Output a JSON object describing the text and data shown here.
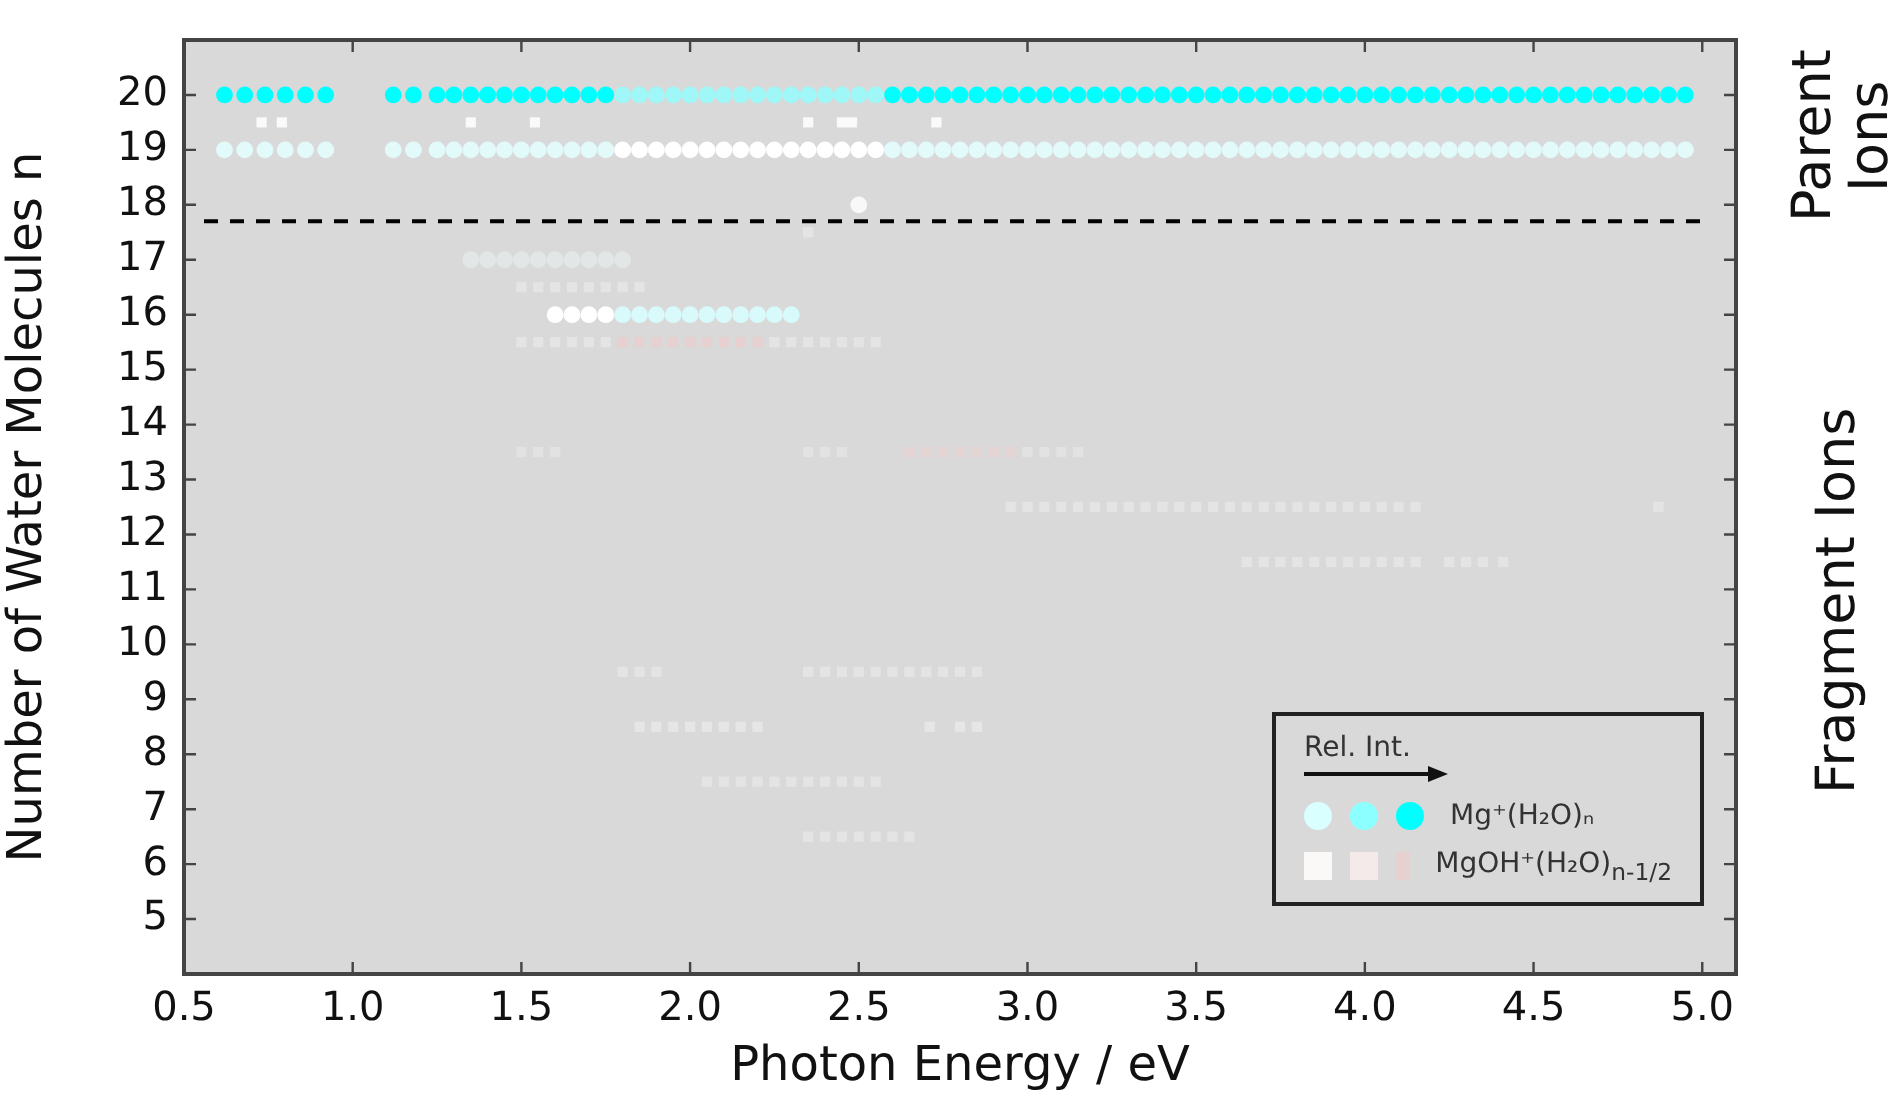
{
  "chart_data": {
    "type": "scatter",
    "xlabel": "Photon Energy / eV",
    "ylabel": "Number of Water Molecules n",
    "legend_title": "Rel. Int.",
    "legend": "bottom right",
    "xlim": [
      0.5,
      5.1
    ],
    "ylim": [
      4,
      21
    ],
    "xticks": [
      0.5,
      {
        "value": 1,
        "label": "1.0"
      },
      1.5,
      {
        "value": 2,
        "label": "2.0"
      },
      2.5,
      {
        "value": 3,
        "label": "3.0"
      },
      3.5,
      {
        "value": 4,
        "label": "4.0"
      },
      4.5,
      {
        "value": 5,
        "label": "5.0"
      }
    ],
    "yticks": [
      5,
      6,
      7,
      8,
      9,
      10,
      11,
      12,
      13,
      14,
      15,
      16,
      17,
      18,
      19,
      20
    ],
    "ref_lines": [
      {
        "axis": "y",
        "value": 17.7,
        "color": "#000000",
        "line_style": "dashed"
      }
    ],
    "annotations": [
      "Parent Ions",
      "Fragment Ions"
    ],
    "series": [
      {
        "name": "Mg⁺(H₂O)ₙ",
        "marker": "circle",
        "color": "#00ffff",
        "x": [
          0.62,
          0.68,
          0.74,
          0.8,
          0.86,
          0.92,
          1.12,
          1.18,
          1.25,
          1.3,
          1.35,
          1.4,
          1.45,
          1.5,
          1.55,
          1.6,
          1.65,
          1.7,
          1.75
        ],
        "values": [
          20,
          20,
          20,
          20,
          20,
          20,
          20,
          20,
          20,
          20,
          20,
          20,
          20,
          20,
          20,
          20,
          20,
          20,
          20
        ]
      },
      {
        "marker": "circle",
        "color": "#9ff7f7",
        "x": [
          1.8,
          1.85,
          1.9,
          1.95,
          2,
          2.05,
          2.1,
          2.15,
          2.2,
          2.25,
          2.3,
          2.35,
          2.4,
          2.45,
          2.5,
          2.55
        ],
        "values": [
          20,
          20,
          20,
          20,
          20,
          20,
          20,
          20,
          20,
          20,
          20,
          20,
          20,
          20,
          20,
          20
        ]
      },
      {
        "marker": "circle",
        "color": "#00ffff",
        "x": [
          2.6,
          2.65,
          2.7,
          2.75,
          2.8,
          2.85,
          2.9,
          2.95,
          3,
          3.05,
          3.1,
          3.15,
          3.2,
          3.25,
          3.3,
          3.35,
          3.4,
          3.45,
          3.5,
          3.55,
          3.6,
          3.65,
          3.7,
          3.75,
          3.8,
          3.85,
          3.9,
          3.95,
          4,
          4.05,
          4.1,
          4.15,
          4.2,
          4.25,
          4.3,
          4.35,
          4.4,
          4.45,
          4.5,
          4.55,
          4.6,
          4.65,
          4.7,
          4.75,
          4.8,
          4.85,
          4.9,
          4.95
        ],
        "values": [
          20,
          20,
          20,
          20,
          20,
          20,
          20,
          20,
          20,
          20,
          20,
          20,
          20,
          20,
          20,
          20,
          20,
          20,
          20,
          20,
          20,
          20,
          20,
          20,
          20,
          20,
          20,
          20,
          20,
          20,
          20,
          20,
          20,
          20,
          20,
          20,
          20,
          20,
          20,
          20,
          20,
          20,
          20,
          20,
          20,
          20,
          20,
          20
        ]
      },
      {
        "marker": "circle",
        "color": "#e3fafa",
        "x": [
          0.62,
          0.68,
          0.74,
          0.8,
          0.86,
          0.92,
          1.12,
          1.18,
          1.25,
          1.3,
          1.35,
          1.4,
          1.45,
          1.5,
          1.55,
          1.6,
          1.65,
          1.7,
          1.75
        ],
        "values": [
          19,
          19,
          19,
          19,
          19,
          19,
          19,
          19,
          19,
          19,
          19,
          19,
          19,
          19,
          19,
          19,
          19,
          19,
          19
        ]
      },
      {
        "marker": "circle",
        "color": "#ffffff",
        "x": [
          1.8,
          1.85,
          1.9,
          1.95,
          2,
          2.05,
          2.1,
          2.15,
          2.2,
          2.25,
          2.3,
          2.35,
          2.4,
          2.45,
          2.5,
          2.55
        ],
        "values": [
          19,
          19,
          19,
          19,
          19,
          19,
          19,
          19,
          19,
          19,
          19,
          19,
          19,
          19,
          19,
          19
        ]
      },
      {
        "marker": "circle",
        "color": "#e3fafa",
        "x": [
          2.6,
          2.65,
          2.7,
          2.75,
          2.8,
          2.85,
          2.9,
          2.95,
          3,
          3.05,
          3.1,
          3.15,
          3.2,
          3.25,
          3.3,
          3.35,
          3.4,
          3.45,
          3.5,
          3.55,
          3.6,
          3.65,
          3.7,
          3.75,
          3.8,
          3.85,
          3.9,
          3.95,
          4,
          4.05,
          4.1,
          4.15,
          4.2,
          4.25,
          4.3,
          4.35,
          4.4,
          4.45,
          4.5,
          4.55,
          4.6,
          4.65,
          4.7,
          4.75,
          4.8,
          4.85,
          4.9,
          4.95
        ],
        "values": [
          19,
          19,
          19,
          19,
          19,
          19,
          19,
          19,
          19,
          19,
          19,
          19,
          19,
          19,
          19,
          19,
          19,
          19,
          19,
          19,
          19,
          19,
          19,
          19,
          19,
          19,
          19,
          19,
          19,
          19,
          19,
          19,
          19,
          19,
          19,
          19,
          19,
          19,
          19,
          19,
          19,
          19,
          19,
          19,
          19,
          19,
          19,
          19
        ]
      },
      {
        "marker": "circle",
        "color": "#f8f8f8",
        "x": [
          2.5
        ],
        "values": [
          18
        ]
      },
      {
        "marker": "circle",
        "color": "#e2e6e6",
        "x": [
          1.35,
          1.4,
          1.45,
          1.5,
          1.55,
          1.6,
          1.65,
          1.7,
          1.75,
          1.8
        ],
        "values": [
          17,
          17,
          17,
          17,
          17,
          17,
          17,
          17,
          17,
          17
        ]
      },
      {
        "marker": "circle",
        "color": "#ffffff",
        "x": [
          1.6,
          1.65,
          1.7,
          1.75
        ],
        "values": [
          16,
          16,
          16,
          16
        ]
      },
      {
        "marker": "circle",
        "color": "#d8fafa",
        "x": [
          1.8,
          1.85,
          1.9,
          1.95,
          2,
          2.05,
          2.1,
          2.15,
          2.2,
          2.25,
          2.3
        ],
        "values": [
          16,
          16,
          16,
          16,
          16,
          16,
          16,
          16,
          16,
          16,
          16
        ]
      },
      {
        "marker": "square",
        "color": "#fafafa",
        "x": [
          0.73,
          0.79,
          1.35,
          1.54,
          2.35,
          2.45,
          2.48,
          2.73
        ],
        "values": [
          19.5,
          19.5,
          19.5,
          19.5,
          19.5,
          19.5,
          19.5,
          19.5
        ]
      },
      {
        "marker": "square",
        "color": "#e4e4e4",
        "x": [
          2.35
        ],
        "values": [
          17.5
        ]
      },
      {
        "marker": "square",
        "color": "#e4e4e4",
        "x": [
          1.5,
          1.55,
          1.6,
          1.65,
          1.7,
          1.75,
          1.8,
          1.85
        ],
        "values": [
          16.5,
          16.5,
          16.5,
          16.5,
          16.5,
          16.5,
          16.5,
          16.5
        ]
      },
      {
        "marker": "square",
        "color": "#e4e4e4",
        "x": [
          1.5,
          1.55,
          1.6,
          1.65,
          1.7,
          1.75
        ],
        "values": [
          15.5,
          15.5,
          15.5,
          15.5,
          15.5,
          15.5
        ]
      },
      {
        "name": "MgOH⁺(H₂O)$_{n-1/2}$",
        "marker": "square",
        "color": "#e6d0d0",
        "x": [
          1.8,
          1.85,
          1.9,
          1.95,
          2,
          2.05,
          2.1,
          2.15,
          2.2
        ],
        "values": [
          15.5,
          15.5,
          15.5,
          15.5,
          15.5,
          15.5,
          15.5,
          15.5,
          15.5
        ]
      },
      {
        "marker": "square",
        "color": "#e4e4e4",
        "x": [
          2.25,
          2.3,
          2.35,
          2.4,
          2.45,
          2.5,
          2.55
        ],
        "values": [
          15.5,
          15.5,
          15.5,
          15.5,
          15.5,
          15.5,
          15.5
        ]
      },
      {
        "marker": "square",
        "color": "#e2e2e2",
        "x": [
          1.5,
          1.55,
          1.6,
          2.35,
          2.4,
          2.45,
          3,
          3.05,
          3.1,
          3.15
        ],
        "values": [
          13.5,
          13.5,
          13.5,
          13.5,
          13.5,
          13.5,
          13.5,
          13.5,
          13.5,
          13.5
        ]
      },
      {
        "marker": "square",
        "color": "#e4d4d4",
        "x": [
          2.65,
          2.7,
          2.75,
          2.8,
          2.85,
          2.9,
          2.95
        ],
        "values": [
          13.5,
          13.5,
          13.5,
          13.5,
          13.5,
          13.5,
          13.5
        ]
      },
      {
        "marker": "square",
        "color": "#e4e4e4",
        "x": [
          2.95,
          3,
          3.05,
          3.1,
          3.15,
          3.2,
          3.25,
          3.3,
          3.35,
          3.4,
          3.45,
          3.5,
          3.55,
          3.6,
          3.65,
          3.7,
          3.75,
          3.8,
          3.85,
          3.9,
          3.95,
          4,
          4.05,
          4.1,
          4.15,
          4.87
        ],
        "values": [
          12.5,
          12.5,
          12.5,
          12.5,
          12.5,
          12.5,
          12.5,
          12.5,
          12.5,
          12.5,
          12.5,
          12.5,
          12.5,
          12.5,
          12.5,
          12.5,
          12.5,
          12.5,
          12.5,
          12.5,
          12.5,
          12.5,
          12.5,
          12.5,
          12.5,
          12.5
        ]
      },
      {
        "marker": "square",
        "color": "#e4e4e4",
        "x": [
          3.65,
          3.7,
          3.75,
          3.8,
          3.85,
          3.9,
          3.95,
          4,
          4.05,
          4.1,
          4.15,
          4.25,
          4.3,
          4.35,
          4.41
        ],
        "values": [
          11.5,
          11.5,
          11.5,
          11.5,
          11.5,
          11.5,
          11.5,
          11.5,
          11.5,
          11.5,
          11.5,
          11.5,
          11.5,
          11.5,
          11.5
        ]
      },
      {
        "marker": "square",
        "color": "#e4e4e4",
        "x": [
          1.8,
          1.85,
          1.9,
          2.35,
          2.4,
          2.45,
          2.5,
          2.55,
          2.6,
          2.65,
          2.7,
          2.75,
          2.8,
          2.85
        ],
        "values": [
          9.5,
          9.5,
          9.5,
          9.5,
          9.5,
          9.5,
          9.5,
          9.5,
          9.5,
          9.5,
          9.5,
          9.5,
          9.5,
          9.5
        ]
      },
      {
        "marker": "square",
        "color": "#e6e6e6",
        "x": [
          1.85,
          1.9,
          1.95,
          2,
          2.05,
          2.1,
          2.15,
          2.2,
          2.71,
          2.8,
          2.85
        ],
        "values": [
          8.5,
          8.5,
          8.5,
          8.5,
          8.5,
          8.5,
          8.5,
          8.5,
          8.5,
          8.5,
          8.5
        ]
      },
      {
        "marker": "square",
        "color": "#e4e4e4",
        "x": [
          2.05,
          2.1,
          2.15,
          2.2,
          2.25,
          2.3,
          2.35,
          2.4,
          2.45,
          2.5,
          2.55
        ],
        "values": [
          7.5,
          7.5,
          7.5,
          7.5,
          7.5,
          7.5,
          7.5,
          7.5,
          7.5,
          7.5,
          7.5
        ]
      },
      {
        "marker": "square",
        "color": "#e4e4e4",
        "x": [
          2.35,
          2.4,
          2.45,
          2.5,
          2.55,
          2.6,
          2.65
        ],
        "values": [
          6.5,
          6.5,
          6.5,
          6.5,
          6.5,
          6.5,
          6.5
        ]
      }
    ]
  }
}
